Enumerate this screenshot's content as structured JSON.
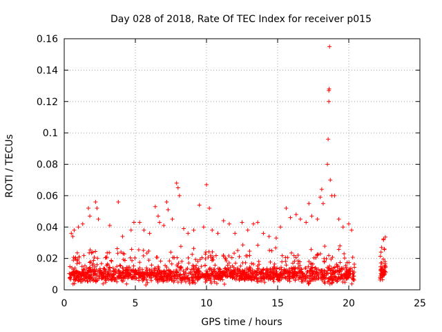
{
  "chart_data": {
    "type": "scatter",
    "title": "Day 028 of 2018, Rate Of TEC Index for receiver p015",
    "xlabel": "GPS time / hours",
    "ylabel": "ROTI / TECUs",
    "xlim": [
      0,
      25
    ],
    "ylim": [
      0,
      0.16
    ],
    "xticks": [
      "0",
      "5",
      "10",
      "15",
      "20",
      "25"
    ],
    "yticks": [
      "0",
      "0.02",
      "0.04",
      "0.06",
      "0.08",
      "0.1",
      "0.12",
      "0.14",
      "0.16"
    ],
    "grid": true,
    "marker": "plus",
    "color": "#ff0000",
    "series": [
      {
        "segments": [
          {
            "x_start": 0.35,
            "x_end": 20.4,
            "density": 1500,
            "base": 0.0095,
            "spread": 0.007
          },
          {
            "x_start": 22.2,
            "x_end": 22.6,
            "density": 60,
            "base": 0.012,
            "spread": 0.009
          }
        ],
        "points": [
          [
            0.5,
            0.036
          ],
          [
            0.6,
            0.034
          ],
          [
            0.7,
            0.038
          ],
          [
            1.0,
            0.04
          ],
          [
            1.3,
            0.042
          ],
          [
            1.7,
            0.052
          ],
          [
            1.8,
            0.047
          ],
          [
            2.2,
            0.056
          ],
          [
            2.3,
            0.052
          ],
          [
            2.4,
            0.045
          ],
          [
            3.2,
            0.041
          ],
          [
            3.8,
            0.056
          ],
          [
            4.1,
            0.034
          ],
          [
            4.7,
            0.038
          ],
          [
            4.9,
            0.043
          ],
          [
            5.3,
            0.043
          ],
          [
            5.6,
            0.038
          ],
          [
            6.0,
            0.036
          ],
          [
            6.4,
            0.053
          ],
          [
            6.6,
            0.047
          ],
          [
            6.7,
            0.043
          ],
          [
            7.0,
            0.041
          ],
          [
            7.2,
            0.056
          ],
          [
            7.3,
            0.051
          ],
          [
            7.6,
            0.045
          ],
          [
            7.9,
            0.068
          ],
          [
            8.0,
            0.065
          ],
          [
            8.1,
            0.06
          ],
          [
            8.4,
            0.039
          ],
          [
            8.7,
            0.036
          ],
          [
            9.1,
            0.038
          ],
          [
            9.5,
            0.054
          ],
          [
            9.8,
            0.04
          ],
          [
            10.0,
            0.067
          ],
          [
            10.2,
            0.052
          ],
          [
            10.4,
            0.038
          ],
          [
            10.8,
            0.036
          ],
          [
            11.2,
            0.044
          ],
          [
            11.6,
            0.042
          ],
          [
            12.0,
            0.036
          ],
          [
            12.5,
            0.043
          ],
          [
            12.9,
            0.038
          ],
          [
            13.3,
            0.042
          ],
          [
            13.6,
            0.043
          ],
          [
            14.0,
            0.036
          ],
          [
            14.4,
            0.034
          ],
          [
            14.9,
            0.033
          ],
          [
            15.2,
            0.04
          ],
          [
            15.6,
            0.052
          ],
          [
            15.9,
            0.046
          ],
          [
            16.3,
            0.048
          ],
          [
            16.6,
            0.045
          ],
          [
            17.0,
            0.043
          ],
          [
            17.2,
            0.055
          ],
          [
            17.4,
            0.047
          ],
          [
            17.8,
            0.045
          ],
          [
            18.0,
            0.059
          ],
          [
            18.1,
            0.064
          ],
          [
            18.2,
            0.055
          ],
          [
            18.5,
            0.08
          ],
          [
            18.55,
            0.096
          ],
          [
            18.6,
            0.12
          ],
          [
            18.6,
            0.127
          ],
          [
            18.62,
            0.128
          ],
          [
            18.65,
            0.155
          ],
          [
            18.7,
            0.07
          ],
          [
            18.8,
            0.06
          ],
          [
            19.0,
            0.06
          ],
          [
            19.3,
            0.045
          ],
          [
            19.6,
            0.04
          ],
          [
            20.0,
            0.042
          ],
          [
            20.2,
            0.038
          ],
          [
            22.3,
            0.027
          ],
          [
            22.5,
            0.026
          ]
        ]
      }
    ]
  }
}
